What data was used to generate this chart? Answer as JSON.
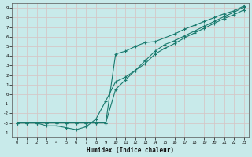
{
  "xlabel": "Humidex (Indice chaleur)",
  "xlim": [
    -0.5,
    23.5
  ],
  "ylim": [
    -4.5,
    9.5
  ],
  "xticks": [
    0,
    1,
    2,
    3,
    4,
    5,
    6,
    7,
    8,
    9,
    10,
    11,
    12,
    13,
    14,
    15,
    16,
    17,
    18,
    19,
    20,
    21,
    22,
    23
  ],
  "yticks": [
    -4,
    -3,
    -2,
    -1,
    0,
    1,
    2,
    3,
    4,
    5,
    6,
    7,
    8,
    9
  ],
  "bg_color": "#c8eaea",
  "grid_color": "#d0d8c8",
  "line_color": "#1a7a6e",
  "curve1_x": [
    0,
    1,
    2,
    3,
    4,
    5,
    6,
    7,
    8,
    9,
    10,
    11,
    12,
    13,
    14,
    15,
    16,
    17,
    18,
    19,
    20,
    21,
    22,
    23
  ],
  "curve1_y": [
    -3.0,
    -3.0,
    -3.0,
    -3.3,
    -3.3,
    -3.5,
    -3.7,
    -3.4,
    -2.6,
    -0.7,
    1.3,
    1.8,
    2.5,
    3.5,
    4.5,
    5.2,
    5.6,
    6.1,
    6.6,
    7.1,
    7.6,
    8.1,
    8.55,
    9.1
  ],
  "curve2_x": [
    0,
    1,
    2,
    3,
    4,
    5,
    6,
    7,
    8,
    9,
    10,
    11,
    12,
    13,
    14,
    15,
    16,
    17,
    18,
    19,
    20,
    21,
    22,
    23
  ],
  "curve2_y": [
    -3.0,
    -3.0,
    -3.0,
    -3.0,
    -3.0,
    -3.0,
    -3.0,
    -3.0,
    -3.0,
    -3.0,
    0.5,
    1.5,
    2.5,
    3.2,
    4.2,
    4.8,
    5.3,
    5.9,
    6.4,
    6.9,
    7.4,
    7.9,
    8.3,
    8.8
  ],
  "curve3_x": [
    0,
    1,
    2,
    3,
    4,
    5,
    6,
    7,
    8,
    9,
    10,
    11,
    12,
    13,
    14,
    15,
    16,
    17,
    18,
    19,
    20,
    21,
    22,
    23
  ],
  "curve3_y": [
    -3.0,
    -3.0,
    -3.0,
    -3.0,
    -3.0,
    -3.0,
    -3.0,
    -3.0,
    -3.0,
    -3.0,
    4.2,
    4.5,
    5.0,
    5.4,
    5.5,
    5.9,
    6.3,
    6.8,
    7.2,
    7.6,
    8.0,
    8.4,
    8.7,
    9.2
  ]
}
